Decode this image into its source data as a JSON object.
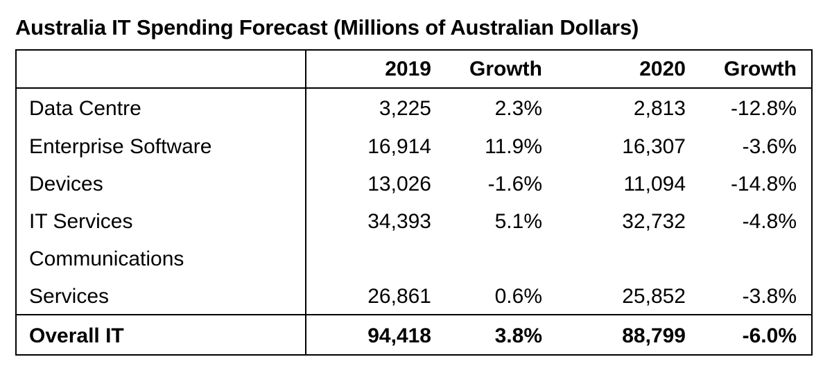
{
  "title": "Australia IT Spending Forecast (Millions of Australian Dollars)",
  "headers": {
    "label": "",
    "y2019": "2019",
    "growth2019": "Growth",
    "y2020": "2020",
    "growth2020": "Growth"
  },
  "rows": [
    {
      "label": "Data Centre",
      "y2019": "3,225",
      "growth2019": "2.3%",
      "y2020": "2,813",
      "growth2020": "-12.8%"
    },
    {
      "label": "Enterprise Software",
      "y2019": "16,914",
      "growth2019": "11.9%",
      "y2020": "16,307",
      "growth2020": "-3.6%"
    },
    {
      "label": "Devices",
      "y2019": "13,026",
      "growth2019": "-1.6%",
      "y2020": "11,094",
      "growth2020": "-14.8%"
    },
    {
      "label": "IT Services",
      "y2019": "34,393",
      "growth2019": "5.1%",
      "y2020": "32,732",
      "growth2020": "-4.8%"
    },
    {
      "label_line1": "Communications",
      "label_line2": "Services",
      "y2019": "26,861",
      "growth2019": "0.6%",
      "y2020": "25,852",
      "growth2020": "-3.8%"
    }
  ],
  "total": {
    "label": "Overall IT",
    "y2019": "94,418",
    "growth2019": "3.8%",
    "y2020": "88,799",
    "growth2020": "-6.0%"
  }
}
